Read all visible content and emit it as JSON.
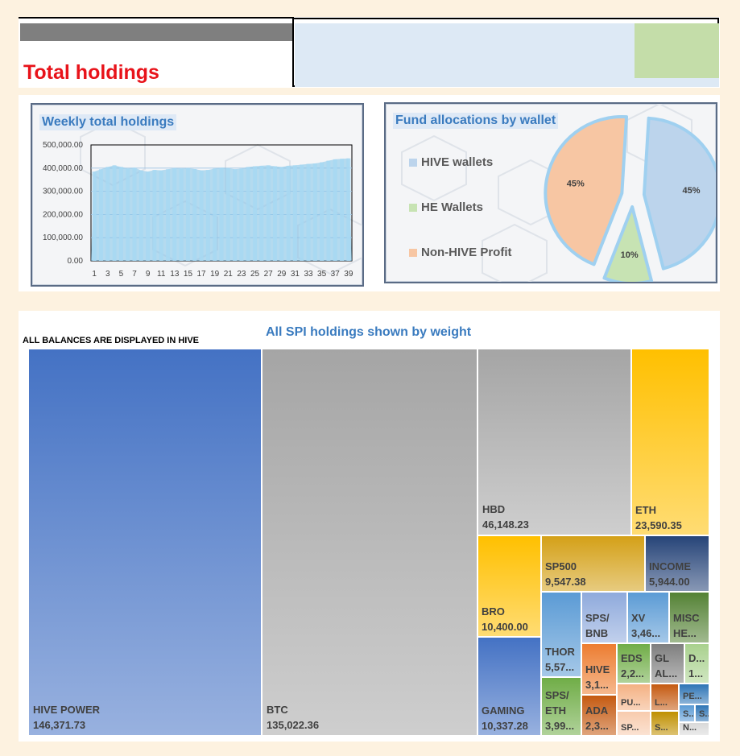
{
  "page": {
    "title": "Total holdings"
  },
  "weekly_chart": {
    "title": "Weekly total holdings"
  },
  "fund_chart": {
    "title": "Fund allocations by wallet"
  },
  "treemap": {
    "note": "ALL BALANCES ARE DISPLAYED IN HIVE",
    "title": "All SPI holdings shown by weight"
  },
  "chart_data": [
    {
      "type": "bar",
      "title": "Weekly total holdings",
      "categories": [
        1,
        2,
        3,
        4,
        5,
        6,
        7,
        8,
        9,
        10,
        11,
        12,
        13,
        14,
        15,
        16,
        17,
        18,
        19,
        20,
        21,
        22,
        23,
        24,
        25,
        26,
        27,
        28,
        29,
        30,
        31,
        32,
        33,
        34,
        35,
        36,
        37,
        38,
        39
      ],
      "x_tick_labels": [
        "1",
        "3",
        "5",
        "7",
        "9",
        "11",
        "13",
        "15",
        "17",
        "19",
        "21",
        "23",
        "25",
        "27",
        "29",
        "31",
        "33",
        "35",
        "37",
        "39"
      ],
      "values": [
        385000,
        395000,
        405000,
        412000,
        405000,
        398000,
        402000,
        390000,
        385000,
        392000,
        390000,
        395000,
        400000,
        398000,
        400000,
        396000,
        390000,
        392000,
        398000,
        402000,
        400000,
        395000,
        398000,
        405000,
        408000,
        410000,
        412000,
        408000,
        405000,
        410000,
        412000,
        415000,
        418000,
        420000,
        425000,
        432000,
        438000,
        440000,
        442000
      ],
      "ylim": [
        0,
        500000
      ],
      "y_tick_labels": [
        "0.00",
        "100,000.00",
        "200,000.00",
        "300,000.00",
        "400,000.00",
        "500,000.00"
      ],
      "grid": true,
      "colors": {
        "bar": "#a7d8f2",
        "area": "#7fc3ea"
      }
    },
    {
      "type": "pie",
      "title": "Fund allocations by wallet",
      "labels": [
        "HIVE wallets",
        "HE Wallets",
        "Non-HIVE Profit"
      ],
      "values": [
        45,
        10,
        45
      ],
      "data_labels": [
        "45%",
        "10%",
        "45%"
      ],
      "legend_position": "left",
      "colors": [
        "#bcd4ec",
        "#c7e3b3",
        "#f7c6a3"
      ]
    },
    {
      "type": "treemap",
      "title": "All SPI holdings shown by weight",
      "items": [
        {
          "name": "HIVE POWER",
          "value": "146,371.73",
          "color": "#4472c4"
        },
        {
          "name": "BTC",
          "value": "135,022.36",
          "color": "#a5a5a5"
        },
        {
          "name": "HBD",
          "value": "46,148.23",
          "color": "#a5a5a5"
        },
        {
          "name": "ETH",
          "value": "23,590.35",
          "color": "#ffc000"
        },
        {
          "name": "BRO",
          "value": "10,400.00",
          "color": "#ffc000"
        },
        {
          "name": "GAMING",
          "value": "10,337.28",
          "color": "#4472c4"
        },
        {
          "name": "SP500",
          "value": "9,547.38",
          "color": "#d4a017"
        },
        {
          "name": "INCOME",
          "value": "5,944.00",
          "color": "#264478"
        },
        {
          "name": "THOR",
          "value": "5,57...",
          "color": "#5b9bd5"
        },
        {
          "name": "SPS/\nBNB",
          "value": "",
          "color": "#8faadc"
        },
        {
          "name": "XV",
          "value": "3,46...",
          "color": "#5b9bd5"
        },
        {
          "name": "MISC",
          "value": "HE...",
          "color": "#548235"
        },
        {
          "name": "SPS/\nETH",
          "value": "3,99...",
          "color": "#70ad47"
        },
        {
          "name": "HIVE",
          "value": "3,1...",
          "color": "#ed7d31"
        },
        {
          "name": "EDS",
          "value": "2,2...",
          "color": "#70ad47"
        },
        {
          "name": "GL",
          "value": "AL...",
          "color": "#7f7f7f"
        },
        {
          "name": "D...",
          "value": "1...",
          "color": "#a9d18e"
        },
        {
          "name": "ADA",
          "value": "2,3...",
          "color": "#c55a11"
        },
        {
          "name": "PU...",
          "value": "",
          "color": "#f4b183"
        },
        {
          "name": "L...",
          "value": "",
          "color": "#c55a11"
        },
        {
          "name": "PE...",
          "value": "",
          "color": "#2e75b6"
        },
        {
          "name": "SP...",
          "value": "",
          "color": "#f8cbad"
        },
        {
          "name": "S...",
          "value": "",
          "color": "#bf9000"
        },
        {
          "name": "S...",
          "value": "",
          "color": "#5b9bd5"
        },
        {
          "name": "S...",
          "value": "",
          "color": "#2e75b6"
        },
        {
          "name": "N...",
          "value": "",
          "color": "#d9d9d9"
        }
      ]
    }
  ]
}
